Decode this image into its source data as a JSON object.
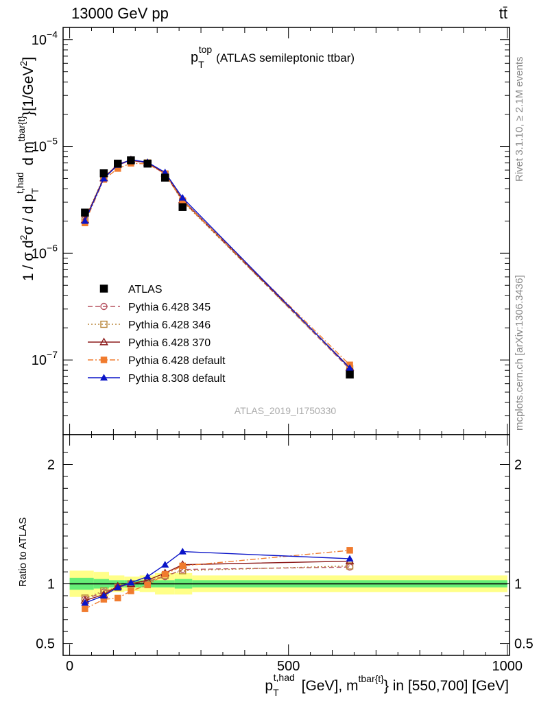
{
  "header": {
    "energy_label": "13000 GeV pp",
    "process_label": "tt̄"
  },
  "side_labels": {
    "rivet": "Rivet 3.1.10, ≥ 2.1M events",
    "mcplots": "mcplots.cern.ch [arXiv:1306.3436]"
  },
  "title": {
    "main": "p",
    "sub": "T",
    "sup": "top",
    "rest": "(ATLAS semileptonic ttbar)"
  },
  "watermark": "ATLAS_2019_I1750330",
  "ylabel_main": "1 / σ d²σ / d p_T^{t,had} d m^{tbar{t}} [1/GeV²]",
  "ylabel_ratio": "Ratio to ATLAS",
  "xlabel": "p_T^{t,had} [GeV], m^{tbar{t}} in [550,700] [GeV]",
  "chart_data": [
    {
      "type": "scatter",
      "panel": "main",
      "yscale": "log",
      "xlim": [
        -15,
        1005
      ],
      "ylim": [
        2e-08,
        0.00013
      ],
      "x": [
        35,
        78,
        110,
        140,
        178,
        218,
        258,
        640
      ],
      "series": [
        {
          "name": "ATLAS",
          "color": "#000000",
          "marker": "square-filled",
          "line": "none",
          "values": [
            2.4e-06,
            5.6e-06,
            6.9e-06,
            7.4e-06,
            6.9e-06,
            5.1e-06,
            2.7e-06,
            7.3e-08
          ]
        },
        {
          "name": "Pythia 6.428 345",
          "color": "#b5505f",
          "marker": "circle-open",
          "line": "dashed",
          "values": [
            2.07e-06,
            5.1e-06,
            6.7e-06,
            7.35e-06,
            7e-06,
            5.5e-06,
            3.1e-06,
            8.2e-08
          ]
        },
        {
          "name": "Pythia 6.428 346",
          "color": "#b8863a",
          "marker": "square-open",
          "line": "dotted",
          "values": [
            2.1e-06,
            5.2e-06,
            6.7e-06,
            7.4e-06,
            7e-06,
            5.5e-06,
            3.05e-06,
            8.3e-08
          ]
        },
        {
          "name": "Pythia 6.428 370",
          "color": "#8c1a1a",
          "marker": "triangle-open",
          "line": "solid",
          "values": [
            2.05e-06,
            5.05e-06,
            6.8e-06,
            7.45e-06,
            7e-06,
            5.6e-06,
            3.15e-06,
            8.5e-08
          ]
        },
        {
          "name": "Pythia 6.428 default",
          "color": "#f07b2e",
          "marker": "square-filled",
          "line": "dashdot",
          "values": [
            1.92e-06,
            4.9e-06,
            6.2e-06,
            6.95e-06,
            6.85e-06,
            5.55e-06,
            3.1e-06,
            9e-08
          ]
        },
        {
          "name": "Pythia 8.308 default",
          "color": "#0a14c8",
          "marker": "triangle-filled",
          "line": "solid",
          "values": [
            2e-06,
            5e-06,
            6.7e-06,
            7.5e-06,
            7.1e-06,
            5.7e-06,
            3.3e-06,
            8.4e-08
          ]
        }
      ],
      "yticks": [
        {
          "value": 1e-07,
          "base": "10",
          "exp": "−7"
        },
        {
          "value": 1e-06,
          "base": "10",
          "exp": "−6"
        },
        {
          "value": 1e-05,
          "base": "10",
          "exp": "−5"
        },
        {
          "value": 0.0001,
          "base": "10",
          "exp": "−4"
        }
      ],
      "legend_position": "middle-left"
    },
    {
      "type": "scatter",
      "panel": "ratio",
      "xlim": [
        -15,
        1005
      ],
      "ylim": [
        0.4,
        2.25
      ],
      "x": [
        35,
        78,
        110,
        140,
        178,
        218,
        258,
        640
      ],
      "reference": 1,
      "band_edges": [
        0,
        55,
        90,
        125,
        160,
        195,
        240,
        280,
        1000
      ],
      "band_inner": [
        0.05,
        0.04,
        0.03,
        0.03,
        0.03,
        0.03,
        0.04,
        0.03
      ],
      "band_outer": [
        0.11,
        0.1,
        0.07,
        0.06,
        0.07,
        0.09,
        0.09,
        0.07
      ],
      "band_colors": {
        "inner": "#66ee77",
        "outer": "#ffff88"
      },
      "series": [
        {
          "name": "Pythia 6.428 345",
          "values": [
            0.87,
            0.93,
            0.97,
            1.0,
            1.02,
            1.06,
            1.12,
            1.14
          ]
        },
        {
          "name": "Pythia 6.428 346",
          "values": [
            0.88,
            0.94,
            0.97,
            1.0,
            1.02,
            1.07,
            1.11,
            1.15
          ]
        },
        {
          "name": "Pythia 6.428 370",
          "values": [
            0.86,
            0.91,
            0.98,
            1.0,
            1.03,
            1.09,
            1.16,
            1.19
          ]
        },
        {
          "name": "Pythia 6.428 default",
          "values": [
            0.79,
            0.87,
            0.88,
            0.94,
            0.99,
            1.08,
            1.15,
            1.28
          ]
        },
        {
          "name": "Pythia 8.308 default",
          "values": [
            0.84,
            0.9,
            0.97,
            1.01,
            1.06,
            1.16,
            1.27,
            1.21
          ]
        }
      ],
      "yticks": [
        {
          "value": 0.5,
          "label": "0.5"
        },
        {
          "value": 1,
          "label": "1"
        },
        {
          "value": 2,
          "label": "2"
        }
      ],
      "xticks": [
        {
          "value": 0,
          "label": "0"
        },
        {
          "value": 500,
          "label": "500"
        },
        {
          "value": 1000,
          "label": "1000"
        }
      ]
    }
  ]
}
